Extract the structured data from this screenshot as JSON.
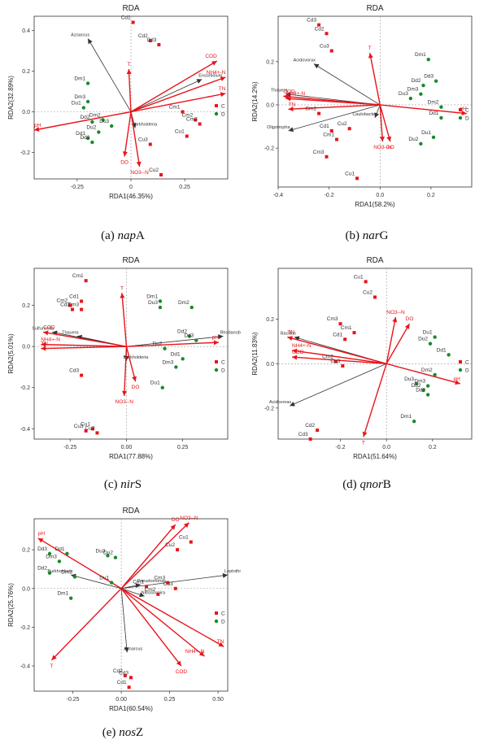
{
  "captions": [
    {
      "prefix": "(a) ",
      "gene": "nap",
      "suffix": "A"
    },
    {
      "prefix": "(b) ",
      "gene": "nar",
      "suffix": "G"
    },
    {
      "prefix": "(c) ",
      "gene": "nir",
      "suffix": "S"
    },
    {
      "prefix": "(d) ",
      "gene": "qnor",
      "suffix": "B"
    },
    {
      "prefix": "(e) ",
      "gene": "nos",
      "suffix": "Z"
    }
  ],
  "colors": {
    "C": "#e8141b",
    "D": "#1a8a2a",
    "env_arrow": "#e8141b",
    "taxa_arrow": "#333333"
  },
  "chart_data": [
    {
      "type": "scatter",
      "title": "RDA",
      "xlabel": "RDA1(46.35%)",
      "ylabel": "RDA2(32.89%)",
      "xlim": [
        -0.45,
        0.45
      ],
      "ylim": [
        -0.33,
        0.47
      ],
      "xticks": [
        -0.25,
        0,
        0.25
      ],
      "xticklabels": [
        "-0.25",
        "0",
        "0.25"
      ],
      "yticks": [
        -0.2,
        0,
        0.2,
        0.4
      ],
      "yticklabels": [
        "-0.2",
        "0.0",
        "0.2",
        "0.4"
      ],
      "legend": [
        {
          "name": "C",
          "color": "C"
        },
        {
          "name": "D",
          "color": "D"
        }
      ],
      "legend_position": "right",
      "points": [
        {
          "label": "Cd1",
          "group": "C",
          "x": 0.01,
          "y": 0.44
        },
        {
          "label": "Cd2",
          "group": "C",
          "x": 0.09,
          "y": 0.35
        },
        {
          "label": "Cd3",
          "group": "C",
          "x": 0.13,
          "y": 0.33
        },
        {
          "label": "Cm1",
          "group": "C",
          "x": 0.24,
          "y": 0.0
        },
        {
          "label": "Cm2",
          "group": "C",
          "x": 0.3,
          "y": -0.04
        },
        {
          "label": "Cm3",
          "group": "C",
          "x": 0.32,
          "y": -0.06
        },
        {
          "label": "Cu1",
          "group": "C",
          "x": 0.26,
          "y": -0.12
        },
        {
          "label": "Cu2",
          "group": "C",
          "x": 0.14,
          "y": -0.31
        },
        {
          "label": "Cu3",
          "group": "C",
          "x": 0.09,
          "y": -0.16
        },
        {
          "label": "Dm1",
          "group": "D",
          "x": -0.2,
          "y": 0.14
        },
        {
          "label": "Dm3",
          "group": "D",
          "x": -0.2,
          "y": 0.05
        },
        {
          "label": "Du1",
          "group": "D",
          "x": -0.22,
          "y": 0.02
        },
        {
          "label": "Dd2",
          "group": "D",
          "x": -0.18,
          "y": -0.05
        },
        {
          "label": "Dm2",
          "group": "D",
          "x": -0.13,
          "y": -0.04
        },
        {
          "label": "Du2",
          "group": "D",
          "x": -0.15,
          "y": -0.1
        },
        {
          "label": "Du3",
          "group": "D",
          "x": -0.09,
          "y": -0.07
        },
        {
          "label": "Dd1",
          "group": "D",
          "x": -0.2,
          "y": -0.13
        },
        {
          "label": "Dd3",
          "group": "D",
          "x": -0.18,
          "y": -0.15
        }
      ],
      "env_vectors": [
        {
          "label": "COD",
          "x": 0.4,
          "y": 0.25
        },
        {
          "label": "NH4+-N",
          "x": 0.44,
          "y": 0.17
        },
        {
          "label": "TN",
          "x": 0.44,
          "y": 0.09
        },
        {
          "label": "pH",
          "x": -0.45,
          "y": -0.09
        },
        {
          "label": "T",
          "x": -0.01,
          "y": 0.21
        },
        {
          "label": "DO",
          "x": -0.03,
          "y": -0.22
        },
        {
          "label": "NO3--N",
          "x": 0.04,
          "y": -0.27
        }
      ],
      "taxa_vectors": [
        {
          "label": "Azoarcus",
          "x": -0.2,
          "y": 0.36
        },
        {
          "label": "Ensortidium",
          "x": 0.33,
          "y": 0.16
        },
        {
          "label": "Burkholderia",
          "x": 0.02,
          "y": -0.08
        }
      ]
    },
    {
      "type": "scatter",
      "title": "RDA",
      "xlabel": "RDA1(58.2%)",
      "ylabel": "RDA2(14.2%)",
      "xlim": [
        -0.4,
        0.36
      ],
      "ylim": [
        -0.38,
        0.41
      ],
      "xticks": [
        -0.4,
        -0.2,
        0,
        0.2
      ],
      "xticklabels": [
        "-0.4",
        "-0.2",
        "0.0",
        "0.2"
      ],
      "yticks": [
        -0.2,
        0,
        0.2
      ],
      "yticklabels": [
        "-0.2",
        "0.0",
        "0.2"
      ],
      "legend": [
        {
          "name": "C",
          "color": "C"
        },
        {
          "name": "D",
          "color": "D"
        }
      ],
      "legend_position": "right",
      "points": [
        {
          "label": "Cd3",
          "group": "C",
          "x": -0.24,
          "y": 0.37
        },
        {
          "label": "Cd2",
          "group": "C",
          "x": -0.21,
          "y": 0.33
        },
        {
          "label": "Cu3",
          "group": "C",
          "x": -0.19,
          "y": 0.25
        },
        {
          "label": "Cm2",
          "group": "C",
          "x": -0.24,
          "y": -0.04
        },
        {
          "label": "Cd1",
          "group": "C",
          "x": -0.19,
          "y": -0.12
        },
        {
          "label": "Cu2",
          "group": "C",
          "x": -0.12,
          "y": -0.11
        },
        {
          "label": "Cm1",
          "group": "C",
          "x": -0.17,
          "y": -0.16
        },
        {
          "label": "Cm3",
          "group": "C",
          "x": -0.21,
          "y": -0.24
        },
        {
          "label": "Cu1",
          "group": "C",
          "x": -0.09,
          "y": -0.34
        },
        {
          "label": "Dm1",
          "group": "D",
          "x": 0.19,
          "y": 0.21
        },
        {
          "label": "Dd3",
          "group": "D",
          "x": 0.22,
          "y": 0.11
        },
        {
          "label": "Dd2",
          "group": "D",
          "x": 0.17,
          "y": 0.09
        },
        {
          "label": "Dm3",
          "group": "D",
          "x": 0.16,
          "y": 0.05
        },
        {
          "label": "Du3",
          "group": "D",
          "x": 0.12,
          "y": 0.03
        },
        {
          "label": "Dm2",
          "group": "D",
          "x": 0.24,
          "y": -0.01
        },
        {
          "label": "Dd1",
          "group": "D",
          "x": 0.24,
          "y": -0.06
        },
        {
          "label": "Du1",
          "group": "D",
          "x": 0.21,
          "y": -0.15
        },
        {
          "label": "Du2",
          "group": "D",
          "x": 0.16,
          "y": -0.18
        }
      ],
      "env_vectors": [
        {
          "label": "T",
          "x": -0.04,
          "y": 0.24
        },
        {
          "label": "NH4+-N",
          "x": -0.37,
          "y": 0.03
        },
        {
          "label": "COD",
          "x": -0.38,
          "y": 0.04
        },
        {
          "label": "TN",
          "x": -0.36,
          "y": -0.02
        },
        {
          "label": "pH",
          "x": 0.34,
          "y": -0.04
        },
        {
          "label": "NO3--N",
          "x": 0.01,
          "y": -0.17
        },
        {
          "label": "DO",
          "x": 0.04,
          "y": -0.17
        }
      ],
      "taxa_vectors": [
        {
          "label": "Acidovorax",
          "x": -0.26,
          "y": 0.19
        },
        {
          "label": "Caulobacter",
          "x": -0.02,
          "y": -0.06
        },
        {
          "label": "Oligotropha",
          "x": -0.36,
          "y": -0.12
        },
        {
          "label": "Thauera",
          "x": -0.37,
          "y": 0.05
        }
      ]
    },
    {
      "type": "scatter",
      "title": "RDA",
      "xlabel": "RDA1(77.88%)",
      "ylabel": "RDA2(5.01%)",
      "xlim": [
        -0.41,
        0.45
      ],
      "ylim": [
        -0.45,
        0.38
      ],
      "xticks": [
        -0.25,
        0,
        0.25
      ],
      "xticklabels": [
        "-0.25",
        "0.00",
        "0.25"
      ],
      "yticks": [
        -0.4,
        -0.2,
        0,
        0.2
      ],
      "yticklabels": [
        "-0.4",
        "-0.2",
        "0.0",
        "0.2"
      ],
      "legend": [
        {
          "name": "C",
          "color": "C"
        },
        {
          "name": "D",
          "color": "D"
        }
      ],
      "legend_position": "right",
      "points": [
        {
          "label": "Cm1",
          "group": "C",
          "x": -0.18,
          "y": 0.32
        },
        {
          "label": "Cd1",
          "group": "C",
          "x": -0.2,
          "y": 0.22
        },
        {
          "label": "Cm2",
          "group": "C",
          "x": -0.25,
          "y": 0.2
        },
        {
          "label": "Cd2",
          "group": "C",
          "x": -0.24,
          "y": 0.18
        },
        {
          "label": "Cm3",
          "group": "C",
          "x": -0.2,
          "y": 0.18
        },
        {
          "label": "Cd3",
          "group": "C",
          "x": -0.2,
          "y": -0.14
        },
        {
          "label": "Cu1",
          "group": "C",
          "x": -0.15,
          "y": -0.4
        },
        {
          "label": "Cu3",
          "group": "C",
          "x": -0.18,
          "y": -0.41
        },
        {
          "label": "Cu2",
          "group": "C",
          "x": -0.13,
          "y": -0.42
        },
        {
          "label": "Dm1",
          "group": "D",
          "x": 0.15,
          "y": 0.22
        },
        {
          "label": "Du3",
          "group": "D",
          "x": 0.15,
          "y": 0.19
        },
        {
          "label": "Dm2",
          "group": "D",
          "x": 0.29,
          "y": 0.19
        },
        {
          "label": "Dd2",
          "group": "D",
          "x": 0.28,
          "y": 0.05
        },
        {
          "label": "Dd3",
          "group": "D",
          "x": 0.31,
          "y": 0.03
        },
        {
          "label": "Du2",
          "group": "D",
          "x": 0.17,
          "y": -0.01
        },
        {
          "label": "Dd1",
          "group": "D",
          "x": 0.25,
          "y": -0.06
        },
        {
          "label": "Dm3",
          "group": "D",
          "x": 0.22,
          "y": -0.1
        },
        {
          "label": "Du1",
          "group": "D",
          "x": 0.16,
          "y": -0.2
        }
      ],
      "env_vectors": [
        {
          "label": "T",
          "x": -0.02,
          "y": 0.26
        },
        {
          "label": "COD",
          "x": -0.37,
          "y": 0.07
        },
        {
          "label": "NH4+-N",
          "x": -0.38,
          "y": 0.01
        },
        {
          "label": "TN",
          "x": -0.38,
          "y": -0.01
        },
        {
          "label": "pH",
          "x": 0.41,
          "y": 0.02
        },
        {
          "label": "DO",
          "x": 0.04,
          "y": -0.17
        },
        {
          "label": "NO3--N",
          "x": -0.01,
          "y": -0.24
        }
      ],
      "taxa_vectors": [
        {
          "label": "Sulfuricella",
          "x": -0.33,
          "y": 0.07
        },
        {
          "label": "Thauera",
          "x": -0.22,
          "y": 0.05
        },
        {
          "label": "Rhodanobacter",
          "x": 0.43,
          "y": 0.05
        },
        {
          "label": "Burkholderia",
          "x": 0.0,
          "y": -0.07
        }
      ]
    },
    {
      "type": "scatter",
      "title": "RDA",
      "xlabel": "RDA1(51.64%)",
      "ylabel": "RDA2(11.83%)",
      "xlim": [
        -0.47,
        0.37
      ],
      "ylim": [
        -0.34,
        0.43
      ],
      "xticks": [
        -0.2,
        0,
        0.2
      ],
      "xticklabels": [
        "-0.2",
        "0.0",
        "0.2"
      ],
      "yticks": [
        -0.2,
        0,
        0.2
      ],
      "yticklabels": [
        "-0.2",
        "0.0",
        "0.2"
      ],
      "legend": [
        {
          "name": "C",
          "color": "C"
        },
        {
          "name": "D",
          "color": "D"
        }
      ],
      "legend_position": "right",
      "points": [
        {
          "label": "Cu1",
          "group": "C",
          "x": -0.09,
          "y": 0.37
        },
        {
          "label": "Cu2",
          "group": "C",
          "x": -0.05,
          "y": 0.3
        },
        {
          "label": "Cm3",
          "group": "C",
          "x": -0.2,
          "y": 0.18
        },
        {
          "label": "Cm1",
          "group": "C",
          "x": -0.14,
          "y": 0.14
        },
        {
          "label": "Cd1",
          "group": "C",
          "x": -0.18,
          "y": 0.11
        },
        {
          "label": "Cm2",
          "group": "C",
          "x": -0.22,
          "y": 0.01
        },
        {
          "label": "Cu3",
          "group": "C",
          "x": -0.19,
          "y": -0.01
        },
        {
          "label": "Cd2",
          "group": "C",
          "x": -0.3,
          "y": -0.3
        },
        {
          "label": "Cd3",
          "group": "C",
          "x": -0.33,
          "y": -0.34
        },
        {
          "label": "Du1",
          "group": "D",
          "x": 0.21,
          "y": 0.12
        },
        {
          "label": "Du2",
          "group": "D",
          "x": 0.19,
          "y": 0.09
        },
        {
          "label": "Dd1",
          "group": "D",
          "x": 0.27,
          "y": 0.04
        },
        {
          "label": "Dm2",
          "group": "D",
          "x": 0.21,
          "y": -0.05
        },
        {
          "label": "Du3",
          "group": "D",
          "x": 0.13,
          "y": -0.09
        },
        {
          "label": "Dm3",
          "group": "D",
          "x": 0.18,
          "y": -0.1
        },
        {
          "label": "Dd2",
          "group": "D",
          "x": 0.16,
          "y": -0.12
        },
        {
          "label": "Dd3",
          "group": "D",
          "x": 0.18,
          "y": -0.14
        },
        {
          "label": "Dm1",
          "group": "D",
          "x": 0.12,
          "y": -0.26
        }
      ],
      "env_vectors": [
        {
          "label": "NO3--N",
          "x": 0.04,
          "y": 0.21
        },
        {
          "label": "DO",
          "x": 0.1,
          "y": 0.18
        },
        {
          "label": "NH4+-N",
          "x": -0.41,
          "y": 0.06
        },
        {
          "label": "COD",
          "x": -0.41,
          "y": 0.03
        },
        {
          "label": "TN",
          "x": -0.43,
          "y": 0.12
        },
        {
          "label": "pH",
          "x": 0.32,
          "y": -0.09
        },
        {
          "label": "T",
          "x": -0.1,
          "y": -0.33
        }
      ],
      "taxa_vectors": [
        {
          "label": "Bacillus",
          "x": -0.4,
          "y": 0.12
        },
        {
          "label": "Acidovorax",
          "x": -0.42,
          "y": -0.19
        }
      ]
    },
    {
      "type": "scatter",
      "title": "RDA",
      "xlabel": "RDA1(60.54%)",
      "ylabel": "RDA2(25.76%)",
      "xlim": [
        -0.45,
        0.55
      ],
      "ylim": [
        -0.53,
        0.36
      ],
      "xticks": [
        -0.25,
        0,
        0.25,
        0.5
      ],
      "xticklabels": [
        "-0.25",
        "0.00",
        "0.25",
        "0.50"
      ],
      "yticks": [
        -0.4,
        -0.2,
        0,
        0.2
      ],
      "yticklabels": [
        "-0.4",
        "-0.2",
        "0.0",
        "0.2"
      ],
      "legend": [
        {
          "name": "C",
          "color": "C"
        },
        {
          "name": "D",
          "color": "D"
        }
      ],
      "legend_position": "right",
      "points": [
        {
          "label": "Cu1",
          "group": "C",
          "x": 0.36,
          "y": 0.24
        },
        {
          "label": "Cu2",
          "group": "C",
          "x": 0.29,
          "y": 0.2
        },
        {
          "label": "Cm3",
          "group": "C",
          "x": 0.24,
          "y": 0.03
        },
        {
          "label": "Cm1",
          "group": "C",
          "x": 0.13,
          "y": 0.01
        },
        {
          "label": "Cu3",
          "group": "C",
          "x": 0.28,
          "y": 0.0
        },
        {
          "label": "Cm2",
          "group": "C",
          "x": 0.19,
          "y": -0.03
        },
        {
          "label": "Cd2",
          "group": "C",
          "x": 0.02,
          "y": -0.45
        },
        {
          "label": "Cd3",
          "group": "C",
          "x": 0.05,
          "y": -0.46
        },
        {
          "label": "Cd1",
          "group": "C",
          "x": 0.04,
          "y": -0.51
        },
        {
          "label": "Dd3",
          "group": "D",
          "x": -0.37,
          "y": 0.18
        },
        {
          "label": "Dd1",
          "group": "D",
          "x": -0.28,
          "y": 0.18
        },
        {
          "label": "Dm3",
          "group": "D",
          "x": -0.32,
          "y": 0.14
        },
        {
          "label": "Du3",
          "group": "D",
          "x": -0.07,
          "y": 0.17
        },
        {
          "label": "Du2",
          "group": "D",
          "x": -0.03,
          "y": 0.16
        },
        {
          "label": "Dm2",
          "group": "D",
          "x": -0.24,
          "y": 0.06
        },
        {
          "label": "Dd2",
          "group": "D",
          "x": -0.37,
          "y": 0.08
        },
        {
          "label": "Du1",
          "group": "D",
          "x": -0.05,
          "y": 0.03
        },
        {
          "label": "Dm1",
          "group": "D",
          "x": -0.26,
          "y": -0.05
        }
      ],
      "env_vectors": [
        {
          "label": "pH",
          "x": -0.43,
          "y": 0.26
        },
        {
          "label": "DO",
          "x": 0.28,
          "y": 0.33
        },
        {
          "label": "NO3--N",
          "x": 0.35,
          "y": 0.34
        },
        {
          "label": "TN",
          "x": 0.53,
          "y": -0.3
        },
        {
          "label": "NH4+-N",
          "x": 0.43,
          "y": -0.35
        },
        {
          "label": "COD",
          "x": 0.31,
          "y": -0.4
        },
        {
          "label": "T",
          "x": -0.36,
          "y": -0.37
        }
      ],
      "taxa_vectors": [
        {
          "label": "Burkholderia",
          "x": -0.26,
          "y": 0.07
        },
        {
          "label": "Leptothrix",
          "x": 0.55,
          "y": 0.07
        },
        {
          "label": "Azoarcus",
          "x": 0.03,
          "y": -0.33
        },
        {
          "label": "Nitrosospira",
          "x": 0.12,
          "y": -0.04
        },
        {
          "label": "Pseudomonas",
          "x": 0.1,
          "y": 0.02
        }
      ]
    }
  ]
}
